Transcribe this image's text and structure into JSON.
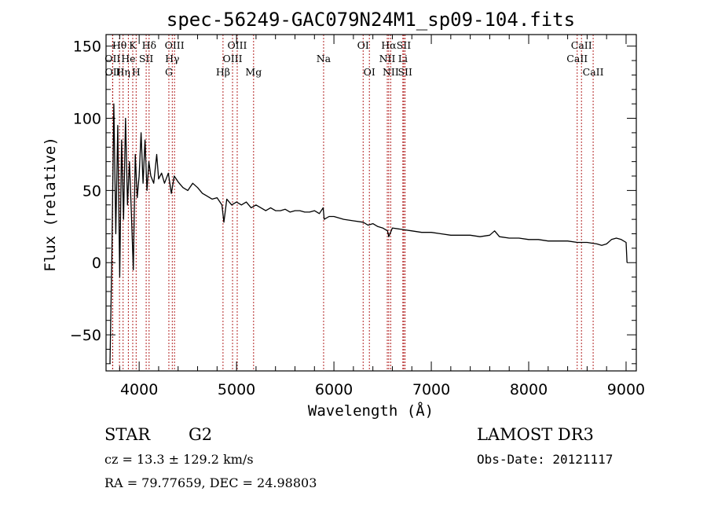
{
  "chart_data": {
    "type": "line",
    "title": "spec-56249-GAC079N24M1_sp09-104.fits",
    "xlabel": "Wavelength (Å)",
    "ylabel": "Flux (relative)",
    "xlim": [
      3660,
      9105
    ],
    "ylim": [
      -75,
      158
    ],
    "xticks": [
      4000,
      5000,
      6000,
      7000,
      8000,
      9000
    ],
    "xtick_labels": [
      "4000",
      "5000",
      "6000",
      "7000",
      "8000",
      "9000"
    ],
    "xminor_step": 200,
    "yticks": [
      -50,
      0,
      50,
      100,
      150
    ],
    "ytick_labels": [
      "−50",
      "0",
      "50",
      "100",
      "150"
    ],
    "yminor_step": 10,
    "grid": false,
    "line_color": "#000000",
    "marker_color": "#b22222",
    "spectral_lines": [
      {
        "label": "Hθ",
        "wavelength": 3798,
        "row": 0
      },
      {
        "label": "OII",
        "wavelength": 3727,
        "row": 1
      },
      {
        "label": "OII",
        "wavelength": 3729,
        "row": 2
      },
      {
        "label": "He",
        "wavelength": 3889,
        "row": 1
      },
      {
        "label": "Hη",
        "wavelength": 3835,
        "row": 2
      },
      {
        "label": "K",
        "wavelength": 3934,
        "row": 0
      },
      {
        "label": "H",
        "wavelength": 3969,
        "row": 2
      },
      {
        "label": "SII",
        "wavelength": 4072,
        "row": 1
      },
      {
        "label": "Hδ",
        "wavelength": 4102,
        "row": 0
      },
      {
        "label": "OIII",
        "wavelength": 4363,
        "row": 0
      },
      {
        "label": "Hγ",
        "wavelength": 4340,
        "row": 1
      },
      {
        "label": "G",
        "wavelength": 4305,
        "row": 2
      },
      {
        "label": "Hβ",
        "wavelength": 4861,
        "row": 2
      },
      {
        "label": "OIII",
        "wavelength": 5007,
        "row": 0
      },
      {
        "label": "OIII",
        "wavelength": 4959,
        "row": 1
      },
      {
        "label": "Mg",
        "wavelength": 5175,
        "row": 2
      },
      {
        "label": "Na",
        "wavelength": 5894,
        "row": 1
      },
      {
        "label": "OI",
        "wavelength": 6300,
        "row": 0
      },
      {
        "label": "OI",
        "wavelength": 6364,
        "row": 2
      },
      {
        "label": "Hα",
        "wavelength": 6563,
        "row": 0
      },
      {
        "label": "NII",
        "wavelength": 6548,
        "row": 1
      },
      {
        "label": "NII",
        "wavelength": 6583,
        "row": 2
      },
      {
        "label": "SII",
        "wavelength": 6717,
        "row": 0
      },
      {
        "label": "Li",
        "wavelength": 6708,
        "row": 1
      },
      {
        "label": "SII",
        "wavelength": 6731,
        "row": 2
      },
      {
        "label": "CaII",
        "wavelength": 8542,
        "row": 0
      },
      {
        "label": "CaII",
        "wavelength": 8498,
        "row": 1
      },
      {
        "label": "CaII",
        "wavelength": 8662,
        "row": 2
      }
    ],
    "spectrum": {
      "wavelength": [
        3700,
        3720,
        3740,
        3760,
        3780,
        3800,
        3820,
        3840,
        3860,
        3880,
        3900,
        3920,
        3940,
        3960,
        3980,
        4000,
        4020,
        4040,
        4060,
        4080,
        4100,
        4120,
        4150,
        4180,
        4200,
        4230,
        4260,
        4300,
        4330,
        4360,
        4400,
        4450,
        4500,
        4550,
        4600,
        4650,
        4700,
        4750,
        4800,
        4850,
        4870,
        4900,
        4950,
        5000,
        5050,
        5100,
        5150,
        5200,
        5250,
        5300,
        5350,
        5400,
        5450,
        5500,
        5550,
        5600,
        5650,
        5700,
        5750,
        5800,
        5850,
        5890,
        5900,
        5950,
        6000,
        6100,
        6200,
        6300,
        6350,
        6400,
        6450,
        6500,
        6550,
        6563,
        6600,
        6700,
        6800,
        6900,
        7000,
        7100,
        7200,
        7300,
        7400,
        7500,
        7600,
        7650,
        7700,
        7800,
        7900,
        8000,
        8100,
        8200,
        8300,
        8400,
        8500,
        8600,
        8700,
        8750,
        8800,
        8850,
        8900,
        8950,
        9000,
        9010
      ],
      "flux": [
        -70,
        5,
        110,
        20,
        95,
        -10,
        85,
        30,
        100,
        40,
        70,
        35,
        -5,
        75,
        45,
        60,
        90,
        55,
        85,
        50,
        70,
        60,
        55,
        75,
        58,
        62,
        55,
        62,
        48,
        60,
        56,
        52,
        50,
        55,
        52,
        48,
        46,
        44,
        45,
        40,
        28,
        44,
        40,
        42,
        40,
        42,
        38,
        40,
        38,
        36,
        38,
        36,
        36,
        37,
        35,
        36,
        36,
        35,
        35,
        36,
        34,
        38,
        30,
        32,
        32,
        30,
        29,
        28,
        26,
        27,
        25,
        24,
        22,
        18,
        24,
        23,
        22,
        21,
        21,
        20,
        19,
        19,
        19,
        18,
        19,
        22,
        18,
        17,
        17,
        16,
        16,
        15,
        15,
        15,
        14,
        14,
        13,
        12,
        13,
        16,
        17,
        16,
        14,
        0
      ]
    }
  },
  "info": {
    "object_class": "STAR",
    "subclass": "G2",
    "redshift": "cz = 13.3 ± 129.2 km/s",
    "coords": "RA =  79.77659, DEC =  24.98803",
    "survey": "LAMOST DR3",
    "obs_date": "Obs-Date: 20121117"
  }
}
